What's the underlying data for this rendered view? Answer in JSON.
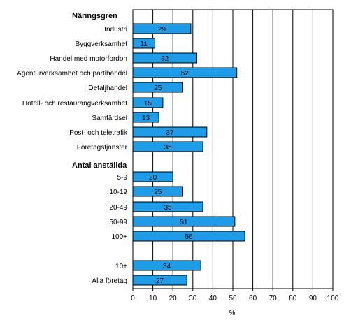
{
  "chart_data": {
    "type": "bar",
    "orientation": "horizontal",
    "xlabel": "%",
    "xlim": [
      0,
      100
    ],
    "x_ticks": [
      "0",
      "10",
      "20",
      "30",
      "40",
      "50",
      "60",
      "70",
      "80",
      "90",
      "100"
    ],
    "grid": true,
    "bar_color": "#1e9ce8",
    "groups": [
      {
        "heading": "Näringsgren",
        "categories": [
          "Industri",
          "Byggverksamhet",
          "Handel med motorfordon",
          "Agenturverksamhet och partihandel",
          "Detaljhandel",
          "Hotell- och restaurangverksamhet",
          "Samfärdsel",
          "Post- och teletrafik",
          "Företagstjänster"
        ],
        "values": [
          29,
          11,
          32,
          52,
          25,
          15,
          13,
          37,
          35
        ]
      },
      {
        "heading": "Antal anställda",
        "categories": [
          "5-9",
          "10-19",
          "20-49",
          "50-99",
          "100+"
        ],
        "values": [
          20,
          25,
          35,
          51,
          56
        ]
      },
      {
        "heading": "",
        "categories": [
          "10+",
          "Alla företag"
        ],
        "values": [
          34,
          27
        ]
      }
    ]
  }
}
